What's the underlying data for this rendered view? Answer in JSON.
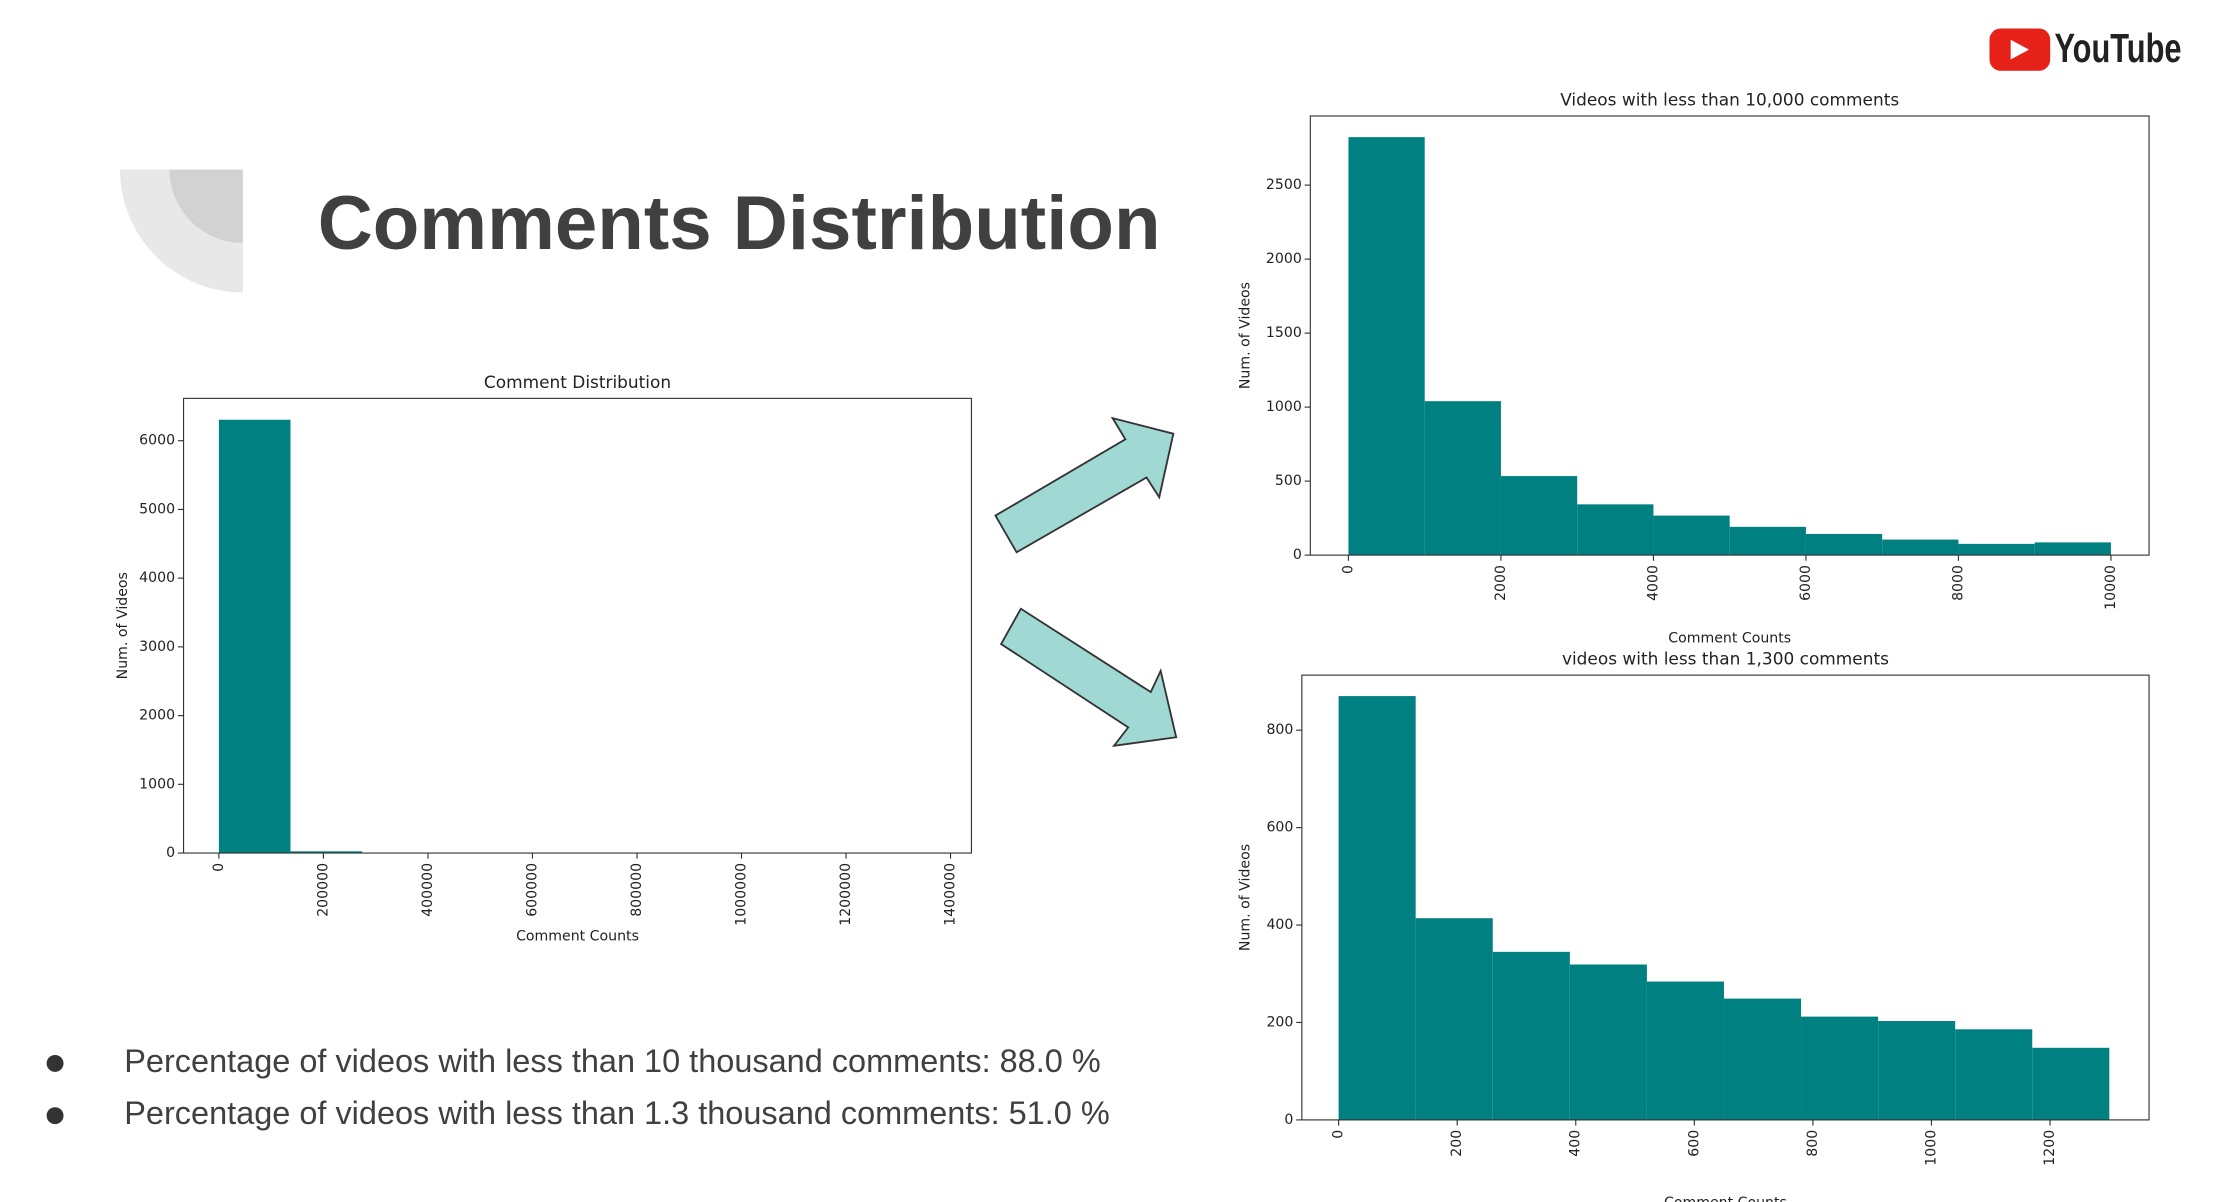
{
  "slide": {
    "title": "Comments Distribution",
    "logo": "YouTube",
    "bullets": [
      "Percentage of videos with less than 10 thousand comments: 88.0 %",
      "Percentage of videos with less than 1.3 thousand comments: 51.0 %"
    ]
  },
  "chart_data": [
    {
      "type": "histogram",
      "title": "Comment Distribution",
      "x_label": "Comment Counts",
      "y_label": "Num. of Videos",
      "color": "#008080",
      "bins": [
        0,
        137000,
        274000,
        411000,
        548000,
        685000,
        822000,
        959000,
        1096000,
        1233000,
        1370000
      ],
      "values": [
        6305,
        25,
        3,
        2,
        1,
        0,
        0,
        0,
        0,
        1
      ],
      "xlim": [
        -67600,
        1440000
      ],
      "xticks": [
        0,
        200000,
        400000,
        600000,
        800000,
        1000000,
        1200000,
        1400000
      ],
      "ylim": [
        0,
        6616
      ],
      "yticks": [
        0,
        1000,
        2000,
        3000,
        4000,
        5000,
        6000
      ]
    },
    {
      "type": "histogram",
      "title": "Videos with less than 10,000 comments",
      "x_label": "Comment Counts",
      "y_label": "Num. of Videos",
      "color": "#008080",
      "bins": [
        0,
        1000,
        2000,
        3000,
        4000,
        5000,
        6000,
        7000,
        8000,
        9000,
        10000
      ],
      "values": [
        2824,
        1040,
        534,
        343,
        267,
        191,
        143,
        105,
        76,
        86
      ],
      "xlim": [
        -500,
        10500
      ],
      "xticks": [
        0,
        2000,
        4000,
        6000,
        8000,
        10000
      ],
      "ylim": [
        0,
        2967
      ],
      "yticks": [
        0,
        500,
        1000,
        1500,
        2000,
        2500
      ]
    },
    {
      "type": "histogram",
      "title": "videos with less than 1,300 comments",
      "x_label": "Comment Counts",
      "y_label": "Num. of Videos",
      "color": "#008080",
      "bins": [
        0,
        130,
        260,
        390,
        520,
        650,
        780,
        910,
        1040,
        1170,
        1300
      ],
      "values": [
        870,
        414,
        345,
        319,
        284,
        249,
        212,
        203,
        186,
        148
      ],
      "xlim": [
        -62,
        1367
      ],
      "xticks": [
        0,
        200,
        400,
        600,
        800,
        1000,
        1200
      ],
      "ylim": [
        0,
        913
      ],
      "yticks": [
        0,
        200,
        400,
        600,
        800
      ]
    }
  ]
}
